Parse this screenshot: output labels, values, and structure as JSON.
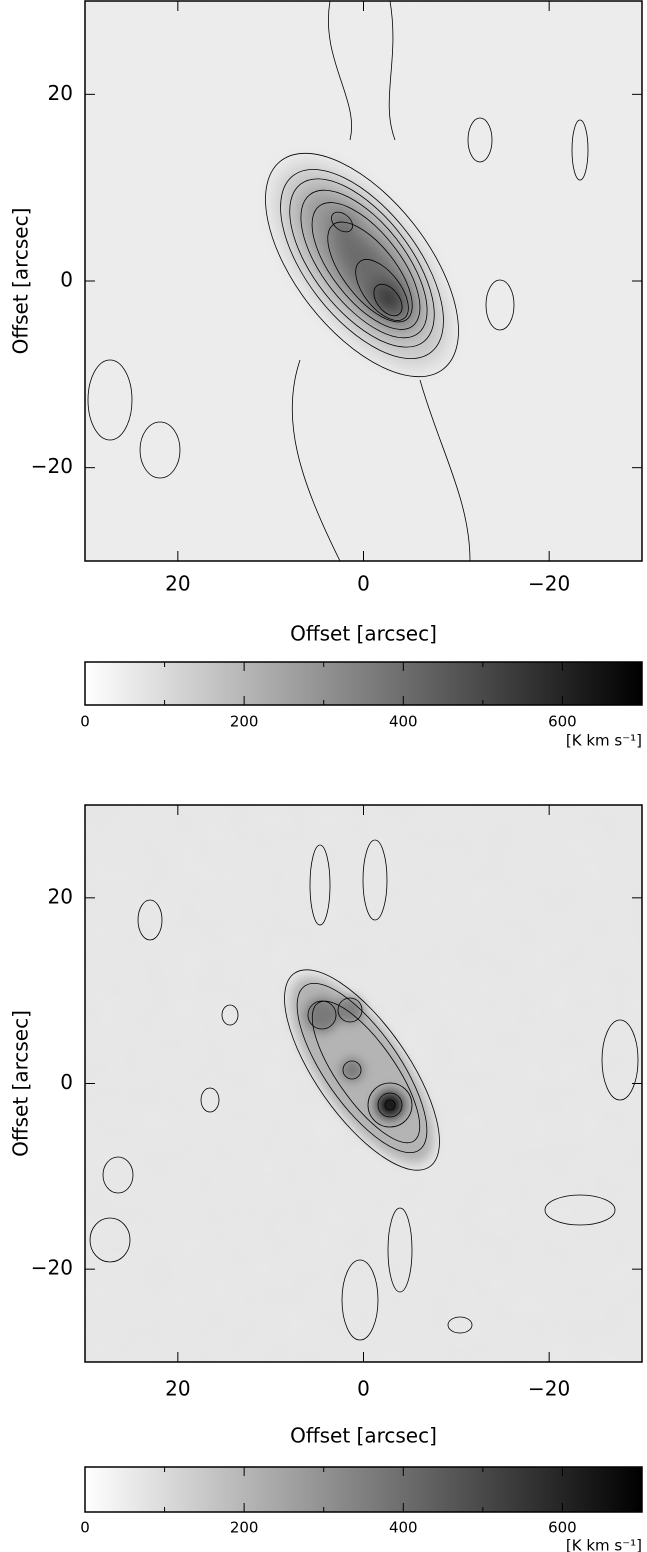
{
  "chart_data": [
    {
      "type": "image",
      "xlabel": "Offset [arcsec]",
      "ylabel": "Offset [arcsec]",
      "xlim": [
        30,
        -30
      ],
      "ylim": [
        -30,
        30
      ],
      "xticks": [
        20,
        0,
        {
          "value": -20,
          "label": "−20"
        }
      ],
      "yticks": [
        {
          "value": -20,
          "label": "−20"
        },
        0,
        20
      ],
      "colorbar": {
        "label": "[K km s⁻¹]",
        "lim": [
          0,
          700
        ],
        "ticks": [
          0,
          200,
          400,
          600
        ],
        "minor_ticks": [
          100,
          300,
          500
        ]
      }
    },
    {
      "type": "image",
      "xlabel": "Offset [arcsec]",
      "ylabel": "Offset [arcsec]",
      "xlim": [
        30,
        -30
      ],
      "ylim": [
        -30,
        30
      ],
      "xticks": [
        20,
        0,
        {
          "value": -20,
          "label": "−20"
        }
      ],
      "yticks": [
        {
          "value": -20,
          "label": "−20"
        },
        0,
        20
      ],
      "colorbar": {
        "label": "[K km s⁻¹]",
        "lim": [
          0,
          700
        ],
        "ticks": [
          0,
          200,
          400,
          600
        ],
        "minor_ticks": [
          100,
          300,
          500
        ]
      }
    }
  ]
}
